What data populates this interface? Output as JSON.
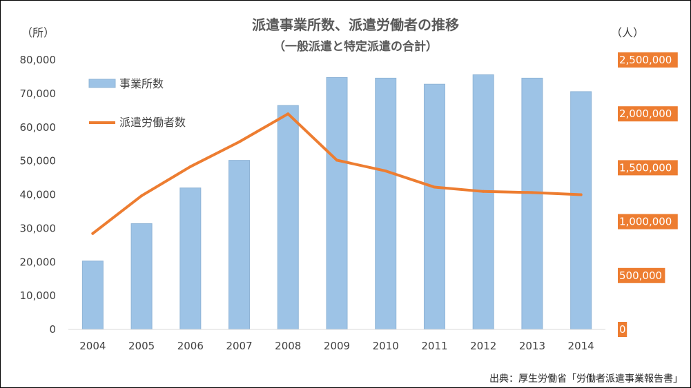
{
  "chart_data": {
    "type": "bar+line",
    "title": "派遣事業所数、派遣労働者の推移",
    "subtitle": "（一般派遣と特定派遣の合計）",
    "source": "出典：厚生労働省「労働者派遣事業報告書」",
    "categories": [
      "2004",
      "2005",
      "2006",
      "2007",
      "2008",
      "2009",
      "2010",
      "2011",
      "2012",
      "2013",
      "2014"
    ],
    "left_axis": {
      "unit_label": "（所）",
      "ylim": [
        0,
        80000
      ],
      "ticks": [
        "0",
        "10,000",
        "20,000",
        "30,000",
        "40,000",
        "50,000",
        "60,000",
        "70,000",
        "80,000"
      ]
    },
    "right_axis": {
      "unit_label": "（人）",
      "ylim": [
        0,
        2500000
      ],
      "ticks": [
        "0",
        "500,000",
        "1,000,000",
        "1,500,000",
        "2,000,000",
        "2,500,000"
      ]
    },
    "series": [
      {
        "name": "事業所数",
        "kind": "bar",
        "axis": "left",
        "color": "#9dc3e6",
        "values": [
          20300,
          31400,
          42000,
          50200,
          66500,
          74800,
          74600,
          72800,
          75600,
          74600,
          70600
        ]
      },
      {
        "name": "派遣労働者数",
        "kind": "line",
        "axis": "right",
        "color": "#ed7d31",
        "values": [
          890000,
          1240000,
          1510000,
          1740000,
          2000000,
          1570000,
          1470000,
          1320000,
          1280000,
          1270000,
          1250000
        ]
      }
    ],
    "legend_position": "top-left",
    "grid": false,
    "right_tick_label_style": "orange-background"
  }
}
